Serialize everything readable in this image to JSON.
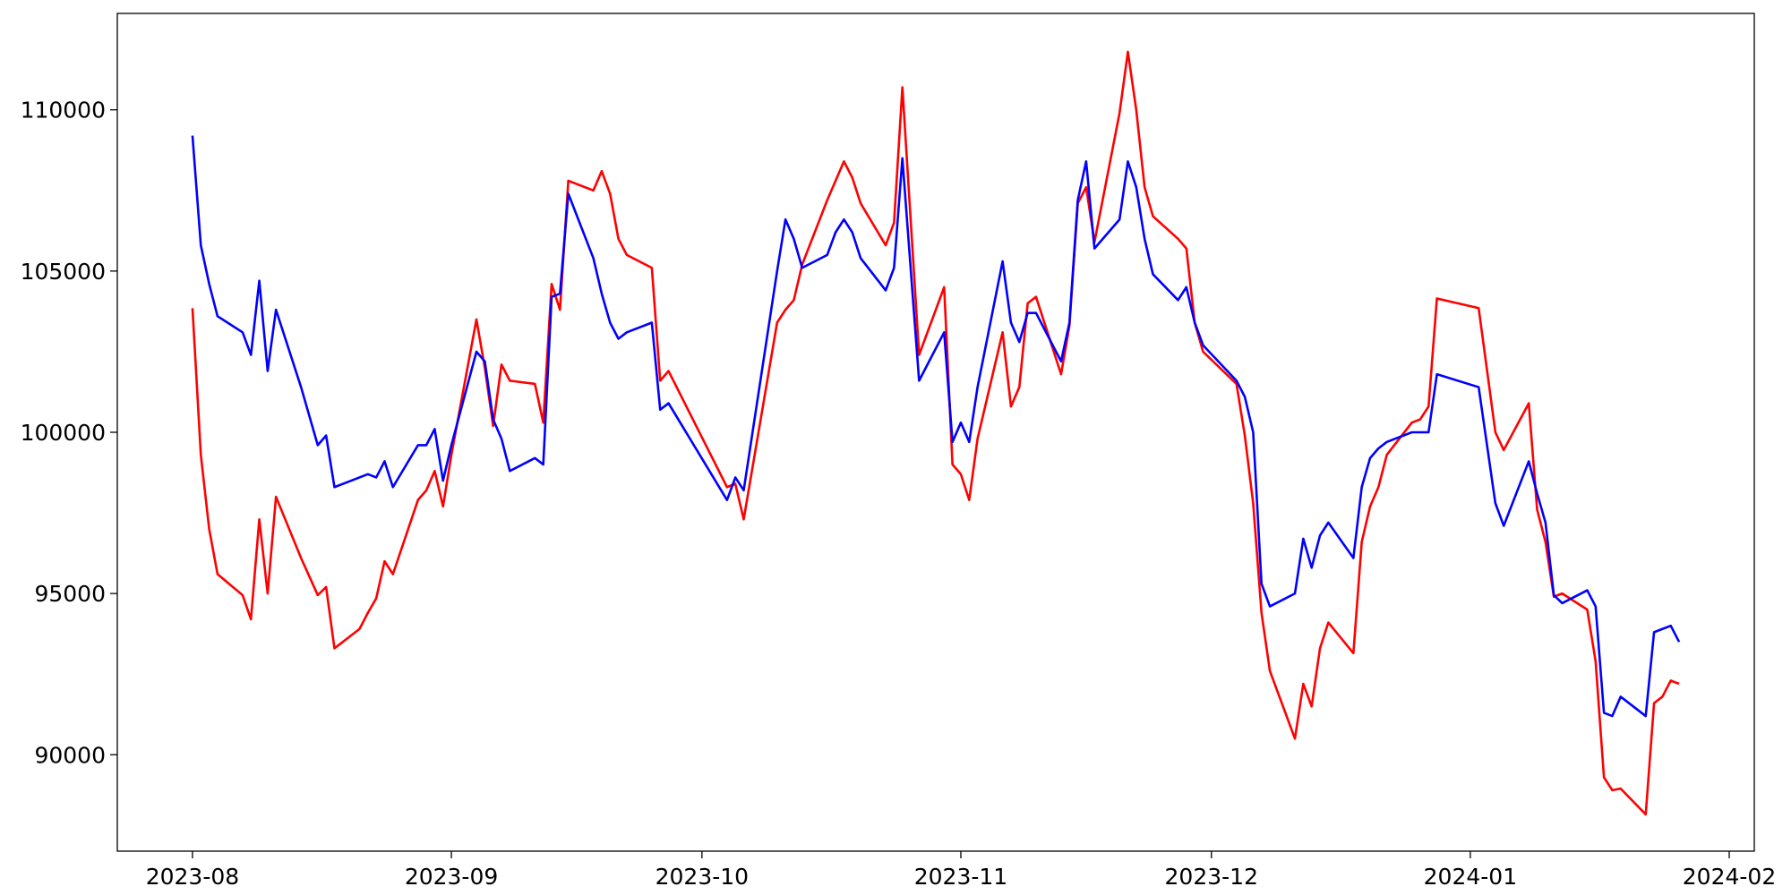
{
  "chart_data": {
    "type": "line",
    "x": [
      "2023-08-01",
      "2023-08-02",
      "2023-08-03",
      "2023-08-04",
      "2023-08-07",
      "2023-08-08",
      "2023-08-09",
      "2023-08-10",
      "2023-08-11",
      "2023-08-14",
      "2023-08-16",
      "2023-08-17",
      "2023-08-18",
      "2023-08-21",
      "2023-08-22",
      "2023-08-23",
      "2023-08-24",
      "2023-08-25",
      "2023-08-28",
      "2023-08-29",
      "2023-08-30",
      "2023-08-31",
      "2023-09-01",
      "2023-09-04",
      "2023-09-05",
      "2023-09-06",
      "2023-09-07",
      "2023-09-08",
      "2023-09-11",
      "2023-09-12",
      "2023-09-13",
      "2023-09-14",
      "2023-09-15",
      "2023-09-18",
      "2023-09-19",
      "2023-09-20",
      "2023-09-21",
      "2023-09-22",
      "2023-09-25",
      "2023-09-26",
      "2023-09-27",
      "2023-10-04",
      "2023-10-05",
      "2023-10-06",
      "2023-10-10",
      "2023-10-11",
      "2023-10-12",
      "2023-10-13",
      "2023-10-16",
      "2023-10-17",
      "2023-10-18",
      "2023-10-19",
      "2023-10-20",
      "2023-10-23",
      "2023-10-24",
      "2023-10-25",
      "2023-10-27",
      "2023-10-30",
      "2023-10-31",
      "2023-11-01",
      "2023-11-02",
      "2023-11-03",
      "2023-11-06",
      "2023-11-07",
      "2023-11-08",
      "2023-11-09",
      "2023-11-10",
      "2023-11-13",
      "2023-11-14",
      "2023-11-15",
      "2023-11-16",
      "2023-11-17",
      "2023-11-20",
      "2023-11-21",
      "2023-11-22",
      "2023-11-23",
      "2023-11-24",
      "2023-11-27",
      "2023-11-28",
      "2023-11-29",
      "2023-11-30",
      "2023-12-04",
      "2023-12-05",
      "2023-12-06",
      "2023-12-07",
      "2023-12-08",
      "2023-12-11",
      "2023-12-12",
      "2023-12-13",
      "2023-12-14",
      "2023-12-15",
      "2023-12-18",
      "2023-12-19",
      "2023-12-20",
      "2023-12-21",
      "2023-12-22",
      "2023-12-25",
      "2023-12-26",
      "2023-12-27",
      "2023-12-28",
      "2024-01-02",
      "2024-01-04",
      "2024-01-05",
      "2024-01-08",
      "2024-01-09",
      "2024-01-10",
      "2024-01-11",
      "2024-01-12",
      "2024-01-15",
      "2024-01-16",
      "2024-01-17",
      "2024-01-18",
      "2024-01-19",
      "2024-01-22",
      "2024-01-23",
      "2024-01-24",
      "2024-01-25",
      "2024-01-26"
    ],
    "series": [
      {
        "color": "#ff0000",
        "values": [
          103850,
          99300,
          97000,
          95600,
          94950,
          94200,
          97300,
          95000,
          98000,
          96100,
          94950,
          95200,
          93300,
          93900,
          94400,
          94850,
          96000,
          95600,
          97900,
          98200,
          98800,
          97700,
          99300,
          103500,
          102000,
          100200,
          102100,
          101600,
          101500,
          100300,
          104600,
          103800,
          107800,
          107500,
          108100,
          107400,
          106000,
          105500,
          105100,
          101600,
          101900,
          98300,
          98400,
          97300,
          103400,
          103800,
          104100,
          105200,
          107200,
          107800,
          108400,
          107900,
          107100,
          105800,
          106500,
          110700,
          102400,
          104500,
          99000,
          98700,
          97900,
          99800,
          103100,
          100800,
          101400,
          104000,
          104200,
          101800,
          103300,
          107100,
          107600,
          105900,
          109900,
          111800,
          110000,
          107600,
          106700,
          106000,
          105700,
          103400,
          102500,
          101500,
          99900,
          97800,
          94400,
          92600,
          90500,
          92200,
          91500,
          93300,
          94100,
          93150,
          96600,
          97700,
          98300,
          99300,
          100300,
          100400,
          100800,
          104150,
          103850,
          100000,
          99450,
          100900,
          97600,
          96600,
          94900,
          95000,
          94500,
          92900,
          89300,
          88900,
          88950,
          88150,
          91600,
          91800,
          92300,
          92200
        ]
      },
      {
        "color": "#0000ff",
        "values": [
          109200,
          105800,
          104600,
          103600,
          103100,
          102400,
          104700,
          101900,
          103800,
          101400,
          99600,
          99900,
          98300,
          98600,
          98700,
          98600,
          99100,
          98300,
          99600,
          99600,
          100100,
          98500,
          99600,
          102500,
          102200,
          100400,
          99800,
          98800,
          99200,
          99000,
          104200,
          104300,
          107400,
          105400,
          104300,
          103400,
          102900,
          103100,
          103400,
          100700,
          100900,
          97900,
          98600,
          98200,
          105000,
          106600,
          106000,
          105100,
          105500,
          106200,
          106600,
          106200,
          105400,
          104400,
          105100,
          108500,
          101600,
          103100,
          99700,
          100300,
          99700,
          101400,
          105300,
          103400,
          102800,
          103700,
          103700,
          102200,
          103400,
          107200,
          108400,
          105700,
          106600,
          108400,
          107600,
          106000,
          104900,
          104100,
          104500,
          103400,
          102700,
          101600,
          101100,
          100000,
          95300,
          94600,
          95000,
          96700,
          95800,
          96800,
          97200,
          96100,
          98300,
          99200,
          99500,
          99700,
          100000,
          100000,
          100000,
          101800,
          101400,
          97800,
          97100,
          99100,
          98100,
          97200,
          94950,
          94700,
          95100,
          94600,
          91300,
          91200,
          91800,
          91200,
          93800,
          93900,
          94000,
          93500
        ]
      }
    ],
    "xlim": [
      "2023-07-23",
      "2024-02-04"
    ],
    "xticks": [
      {
        "value": "2023-08-01",
        "label": "2023-08"
      },
      {
        "value": "2023-09-01",
        "label": "2023-09"
      },
      {
        "value": "2023-10-01",
        "label": "2023-10"
      },
      {
        "value": "2023-11-01",
        "label": "2023-11"
      },
      {
        "value": "2023-12-01",
        "label": "2023-12"
      },
      {
        "value": "2024-01-01",
        "label": "2024-01"
      },
      {
        "value": "2024-02-01",
        "label": "2024-02"
      }
    ],
    "ylim": [
      87010,
      112990
    ],
    "yticks": [
      90000,
      95000,
      100000,
      105000,
      110000
    ],
    "grid": false
  }
}
